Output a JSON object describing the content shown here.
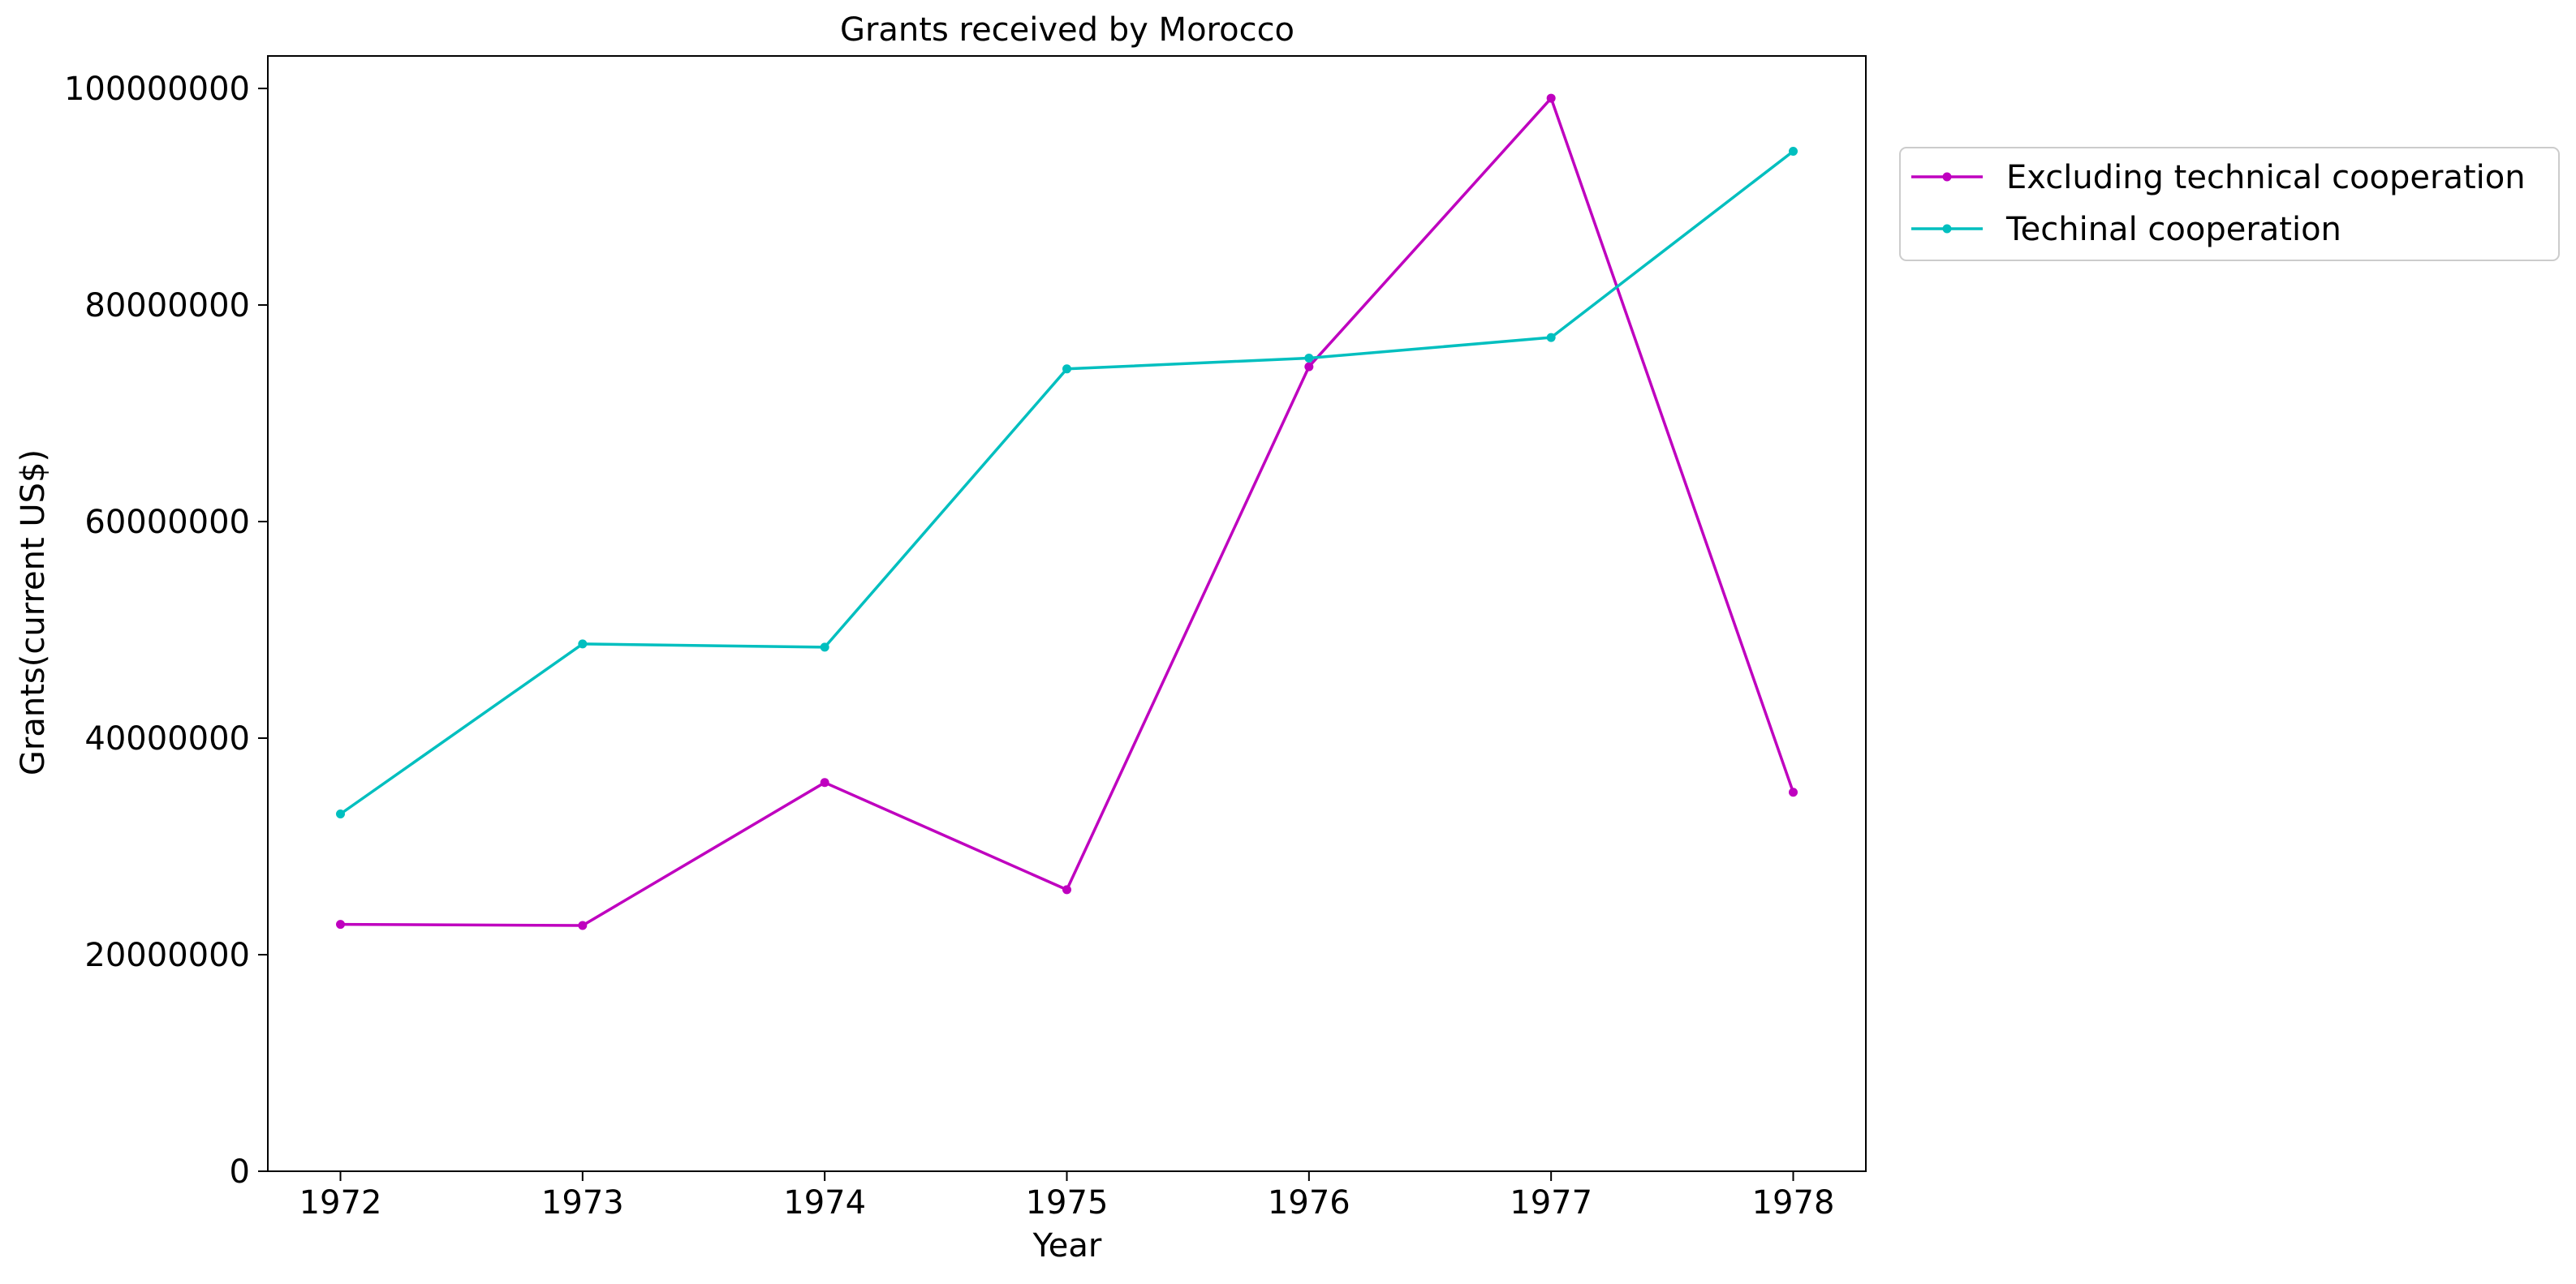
{
  "chart_data": {
    "type": "line",
    "title": "Grants received by Morocco",
    "xlabel": "Year",
    "ylabel": "Grants(current US$)",
    "x": [
      1972,
      1973,
      1974,
      1975,
      1976,
      1977,
      1978
    ],
    "xticks": [
      "1972",
      "1973",
      "1974",
      "1975",
      "1976",
      "1977",
      "1978"
    ],
    "yticks": [
      0,
      20000000,
      40000000,
      60000000,
      80000000,
      100000000
    ],
    "ytick_labels": [
      "0",
      "20000000",
      "40000000",
      "60000000",
      "80000000",
      "100000000"
    ],
    "xlim": [
      1971.7,
      1978.3
    ],
    "ylim": [
      0,
      103000000
    ],
    "grid": false,
    "legend_position": "outside-top-right",
    "series": [
      {
        "name": "Excluding technical cooperation",
        "color": "#bf00bf",
        "values": [
          22800000,
          22700000,
          35900000,
          26000000,
          74300000,
          99100000,
          35000000
        ]
      },
      {
        "name": "Techinal cooperation",
        "color": "#00bfbf",
        "values": [
          33000000,
          48700000,
          48400000,
          74100000,
          75100000,
          77000000,
          94200000
        ]
      }
    ]
  }
}
